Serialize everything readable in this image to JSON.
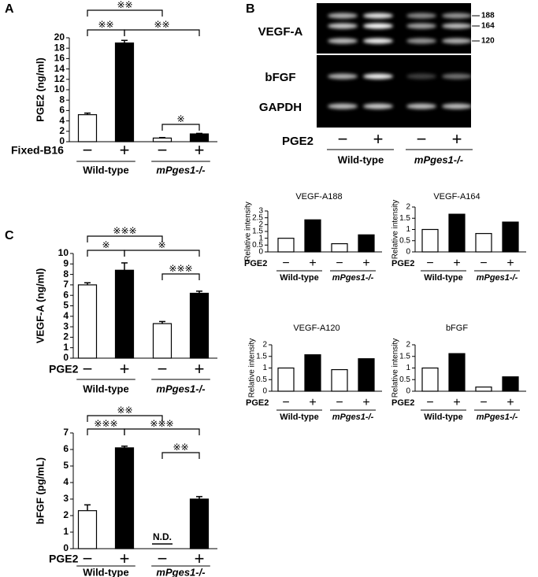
{
  "panel_labels": [
    "A",
    "B",
    "C"
  ],
  "gel": {
    "rows": [
      "VEGF-A",
      "bFGF",
      "GAPDH"
    ],
    "markers": [
      "188",
      "164",
      "120"
    ],
    "treatment_label": "PGE2",
    "treatments": [
      "−",
      "+",
      "−",
      "+"
    ],
    "groups": [
      "Wild-type",
      "mPges1-/-"
    ]
  },
  "chart_data": [
    {
      "type": "bar",
      "y_label": "PGE2 (ng/ml)",
      "treatment_label": "Fixed-B16",
      "categories": [
        "−",
        "+",
        "−",
        "+"
      ],
      "groups": [
        "Wild-type",
        "mPges1-/-"
      ],
      "values": [
        5.2,
        19,
        0.7,
        1.5
      ],
      "errors": [
        0.3,
        0.5,
        0.1,
        0.1
      ],
      "colors": [
        "#ffffff",
        "#000000",
        "#ffffff",
        "#000000"
      ],
      "ylim": [
        0,
        20
      ],
      "yticks": [
        0,
        2,
        4,
        6,
        8,
        10,
        12,
        14,
        16,
        18,
        20
      ],
      "significance": [
        "※※",
        "※※",
        "※※",
        "※"
      ]
    },
    {
      "type": "bar",
      "y_label": "VEGF-A (ng/ml)",
      "treatment_label": "PGE2",
      "categories": [
        "−",
        "+",
        "−",
        "+"
      ],
      "groups": [
        "Wild-type",
        "mPges1-/-"
      ],
      "values": [
        7.0,
        8.4,
        3.3,
        6.2
      ],
      "errors": [
        0.2,
        0.7,
        0.2,
        0.2
      ],
      "colors": [
        "#ffffff",
        "#000000",
        "#ffffff",
        "#000000"
      ],
      "ylim": [
        0,
        10
      ],
      "yticks": [
        0,
        1,
        2,
        3,
        4,
        5,
        6,
        7,
        8,
        9,
        10
      ],
      "significance": [
        "※※※",
        "※",
        "※",
        "※※※"
      ]
    },
    {
      "type": "bar",
      "y_label": "bFGF (pg/mL)",
      "treatment_label": "PGE2",
      "categories": [
        "−",
        "+",
        "−",
        "+"
      ],
      "groups": [
        "Wild-type",
        "mPges1-/-"
      ],
      "values": [
        2.3,
        6.1,
        null,
        3.0
      ],
      "errors": [
        0.35,
        0.1,
        null,
        0.15
      ],
      "colors": [
        "#ffffff",
        "#000000",
        "#ffffff",
        "#000000"
      ],
      "ylim": [
        0,
        7
      ],
      "yticks": [
        0,
        1,
        2,
        3,
        4,
        5,
        6,
        7
      ],
      "missing_label": "N.D.",
      "significance": [
        "※※",
        "※※※",
        "※※※",
        "※※"
      ]
    },
    {
      "type": "bar",
      "title": "VEGF-A188",
      "y_label": "Relative intensity",
      "treatment_label": "PGE2",
      "categories": [
        "−",
        "+",
        "−",
        "+"
      ],
      "groups": [
        "Wild-type",
        "mPges1-/-"
      ],
      "values": [
        1,
        2.35,
        0.6,
        1.25
      ],
      "colors": [
        "#ffffff",
        "#000000",
        "#ffffff",
        "#000000"
      ],
      "ylim": [
        0,
        3
      ],
      "yticks": [
        0,
        0.5,
        1,
        1.5,
        2,
        2.5,
        3
      ]
    },
    {
      "type": "bar",
      "title": "VEGF-A164",
      "y_label": "Relative intensity",
      "treatment_label": "PGE2",
      "categories": [
        "−",
        "+",
        "−",
        "+"
      ],
      "groups": [
        "Wild-type",
        "mPges1-/-"
      ],
      "values": [
        1,
        1.68,
        0.82,
        1.33
      ],
      "colors": [
        "#ffffff",
        "#000000",
        "#ffffff",
        "#000000"
      ],
      "ylim": [
        0,
        2
      ],
      "yticks": [
        0,
        0.5,
        1,
        1.5,
        2
      ]
    },
    {
      "type": "bar",
      "title": "VEGF-A120",
      "y_label": "Relative intensity",
      "treatment_label": "PGE2",
      "categories": [
        "−",
        "+",
        "−",
        "+"
      ],
      "groups": [
        "Wild-type",
        "mPges1-/-"
      ],
      "values": [
        1,
        1.57,
        0.93,
        1.4
      ],
      "colors": [
        "#ffffff",
        "#000000",
        "#ffffff",
        "#000000"
      ],
      "ylim": [
        0,
        2
      ],
      "yticks": [
        0,
        0.5,
        1,
        1.5,
        2
      ]
    },
    {
      "type": "bar",
      "title": "bFGF",
      "y_label": "Relative intensity",
      "treatment_label": "PGE2",
      "categories": [
        "−",
        "+",
        "−",
        "+"
      ],
      "groups": [
        "Wild-type",
        "mPges1-/-"
      ],
      "values": [
        1,
        1.62,
        0.18,
        0.62
      ],
      "colors": [
        "#ffffff",
        "#000000",
        "#ffffff",
        "#000000"
      ],
      "ylim": [
        0,
        2
      ],
      "yticks": [
        0,
        0.5,
        1,
        1.5,
        2
      ]
    }
  ]
}
